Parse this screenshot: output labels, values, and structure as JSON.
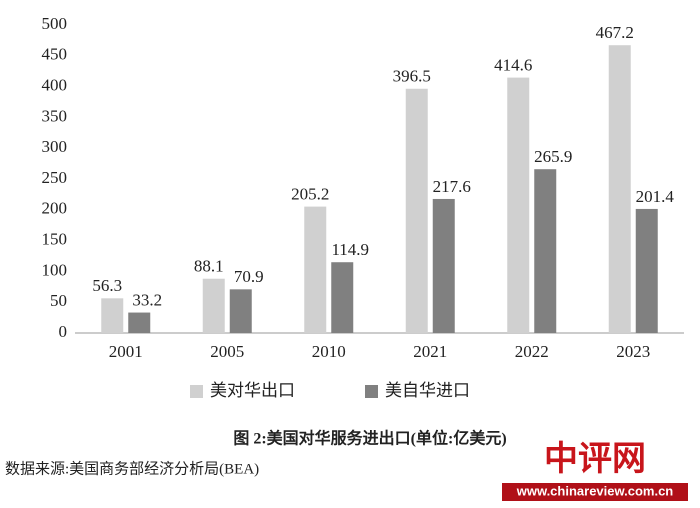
{
  "chart_data": {
    "type": "bar",
    "categories": [
      "2001",
      "2005",
      "2010",
      "2021",
      "2022",
      "2023"
    ],
    "series": [
      {
        "name": "美对华出口",
        "color": "#d0d0d0",
        "values": [
          56.3,
          88.1,
          205.2,
          396.5,
          414.6,
          467.2
        ]
      },
      {
        "name": "美自华进口",
        "color": "#808080",
        "values": [
          33.2,
          70.9,
          114.9,
          217.6,
          265.9,
          201.4
        ]
      }
    ],
    "ylim": [
      0,
      500
    ],
    "yticks": [
      0,
      50,
      100,
      150,
      200,
      250,
      300,
      350,
      400,
      450,
      500
    ],
    "grid": false,
    "legend": "bottom",
    "caption": "图 2:美国对华服务进出口(单位:亿美元)",
    "source": "数据来源:美国商务部经济分析局(BEA)"
  },
  "watermark": {
    "title": "中评网",
    "url": "www.chinareview.com.cn"
  }
}
